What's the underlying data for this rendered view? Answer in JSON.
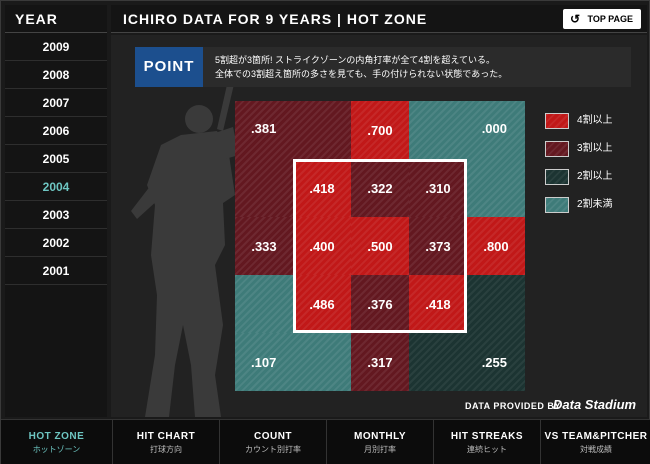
{
  "years": {
    "header": "YEAR",
    "items": [
      "2009",
      "2008",
      "2007",
      "2006",
      "2005",
      "2004",
      "2003",
      "2002",
      "2001"
    ],
    "active": "2004"
  },
  "title": "ICHIRO DATA FOR 9 YEARS  |  HOT ZONE",
  "top_page": {
    "label": "TOP PAGE",
    "icon": "refresh-arrow-icon"
  },
  "point": {
    "label": "POINT",
    "line1": "5割超が3箇所! ストライクゾーンの内角打率が全て4割を超えている。",
    "line2": "全体での3割超え箇所の多さを見ても、手の付けられない状態であった。"
  },
  "zones": {
    "outer_top": [
      ".381",
      ".700",
      ".000"
    ],
    "inner_row1": [
      ".418",
      ".322",
      ".310"
    ],
    "inner_row2": [
      ".400",
      ".500",
      ".373"
    ],
    "inner_row3": [
      ".486",
      ".376",
      ".418"
    ],
    "side_left": ".333",
    "side_right": ".800",
    "outer_bottom": [
      ".107",
      ".317",
      ".255"
    ]
  },
  "legend": [
    {
      "label": "4割以上",
      "color": "#c11818"
    },
    {
      "label": "3割以上",
      "color": "#631820"
    },
    {
      "label": "2割以上",
      "color": "#1c3432"
    },
    {
      "label": "2割未満",
      "color": "#3e7b79"
    }
  ],
  "provider": {
    "text": "DATA PROVIDED BY",
    "logo": "Data Stadium"
  },
  "nav": [
    {
      "label": "HOT ZONE",
      "sub": "ホットゾーン"
    },
    {
      "label": "HIT CHART",
      "sub": "打球方向"
    },
    {
      "label": "COUNT",
      "sub": "カウント別打率"
    },
    {
      "label": "MONTHLY",
      "sub": "月別打率"
    },
    {
      "label": "HIT STREAKS",
      "sub": "連続ヒット"
    },
    {
      "label": "VS TEAM&PITCHER",
      "sub": "対戦成績"
    }
  ]
}
